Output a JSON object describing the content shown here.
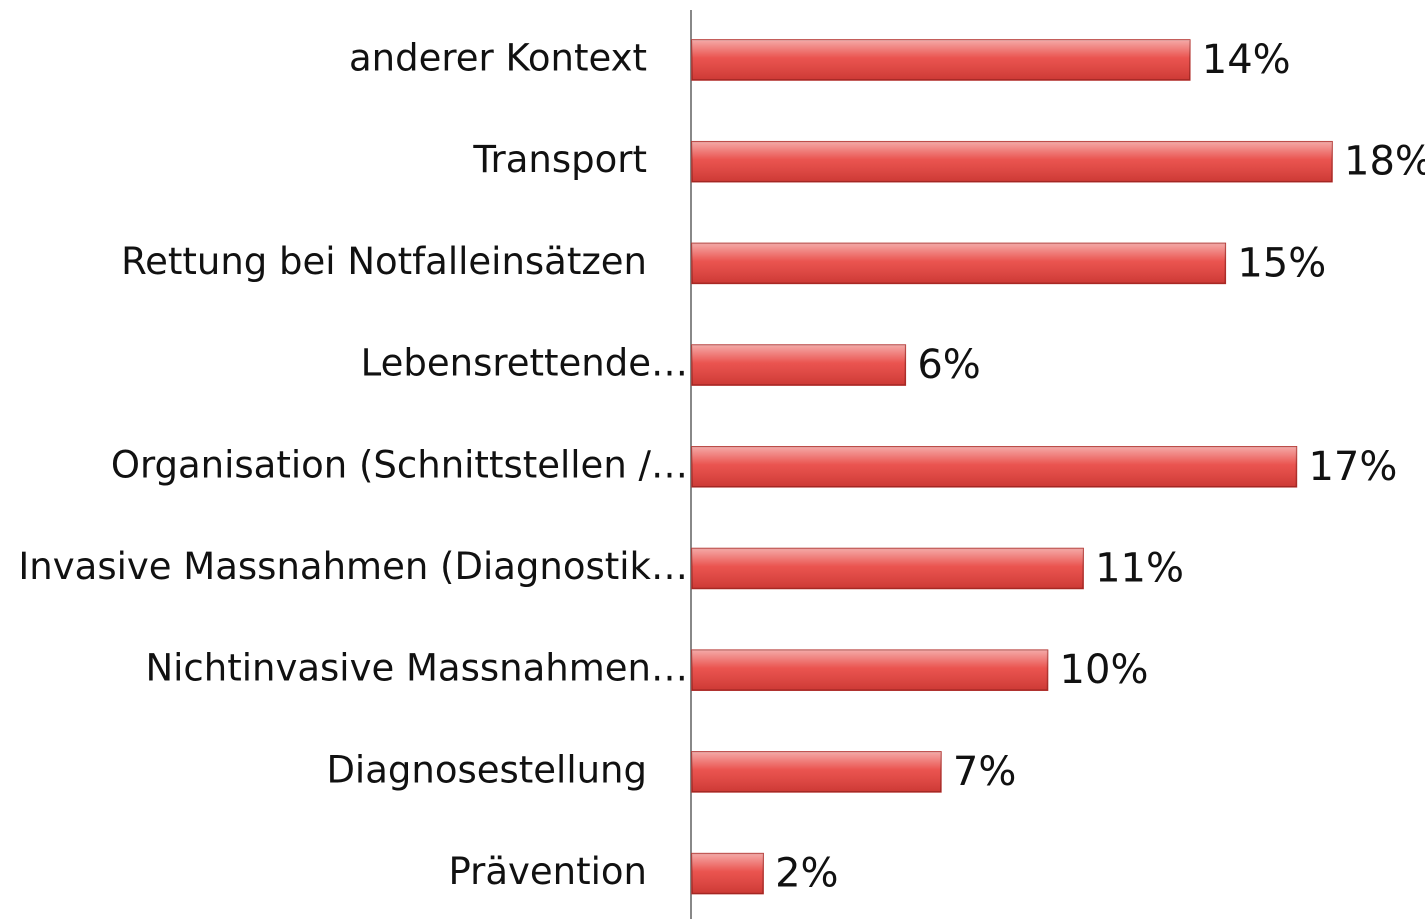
{
  "chart_data": {
    "type": "barh",
    "categories": [
      "anderer Kontext",
      "Transport",
      "Rettung bei Notfalleinsätzen",
      "Lebensrettende…",
      "Organisation (Schnittstellen /…",
      "Invasive Massnahmen (Diagnostik…",
      "Nichtinvasive Massnahmen…",
      "Diagnosestellung",
      "Prävention"
    ],
    "values": [
      14,
      18,
      15,
      6,
      17,
      11,
      10,
      7,
      2
    ],
    "value_labels": [
      "14%",
      "18%",
      "15%",
      "6%",
      "17%",
      "11%",
      "10%",
      "7%",
      "2%"
    ],
    "color": "#e8413c"
  }
}
